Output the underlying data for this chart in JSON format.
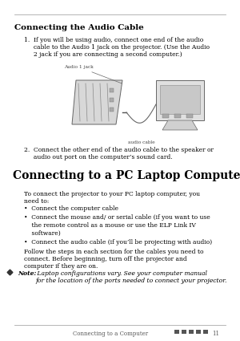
{
  "background_color": "#ffffff",
  "section1_title": "Connecting the Audio Cable",
  "section1_title_fontsize": 7.5,
  "item1_text": "1.  If you will be using audio, connect one end of the audio\n     cable to the Audio 1 jack on the projector. (Use the Audio\n     2 jack if you are connecting a second computer.)",
  "item1_fontsize": 5.5,
  "item2_text": "2.  Connect the other end of the audio cable to the speaker or\n     audio out port on the computer’s sound card.",
  "item2_fontsize": 5.5,
  "section2_title": "Connecting to a PC Laptop Computer",
  "section2_title_fontsize": 10.0,
  "intro_text": "To connect the projector to your PC laptop computer, you\nneed to:",
  "body_fontsize": 5.5,
  "bullet1": "•  Connect the computer cable",
  "bullet2_line1": "•  Connect the mouse and/ or serial cable (if you want to use",
  "bullet2_line2": "    the remote control as a mouse or use the ELP Link IV",
  "bullet2_line3": "    software)",
  "bullet3": "•  Connect the audio cable (if you’ll be projecting with audio)",
  "follow_text": "Follow the steps in each section for the cables you need to\nconnect. Before beginning, turn off the projector and\ncomputer if they are on.",
  "note_bold": "Note:",
  "note_italic": " Laptop configurations vary. See your computer manual\nfor the location of the ports needed to connect your projector.",
  "footer_text": "Connecting to a Computer",
  "footer_page": "11",
  "footer_fontsize": 5.0,
  "image_label1": "Audio 1 jack",
  "image_label2": "audio cable"
}
